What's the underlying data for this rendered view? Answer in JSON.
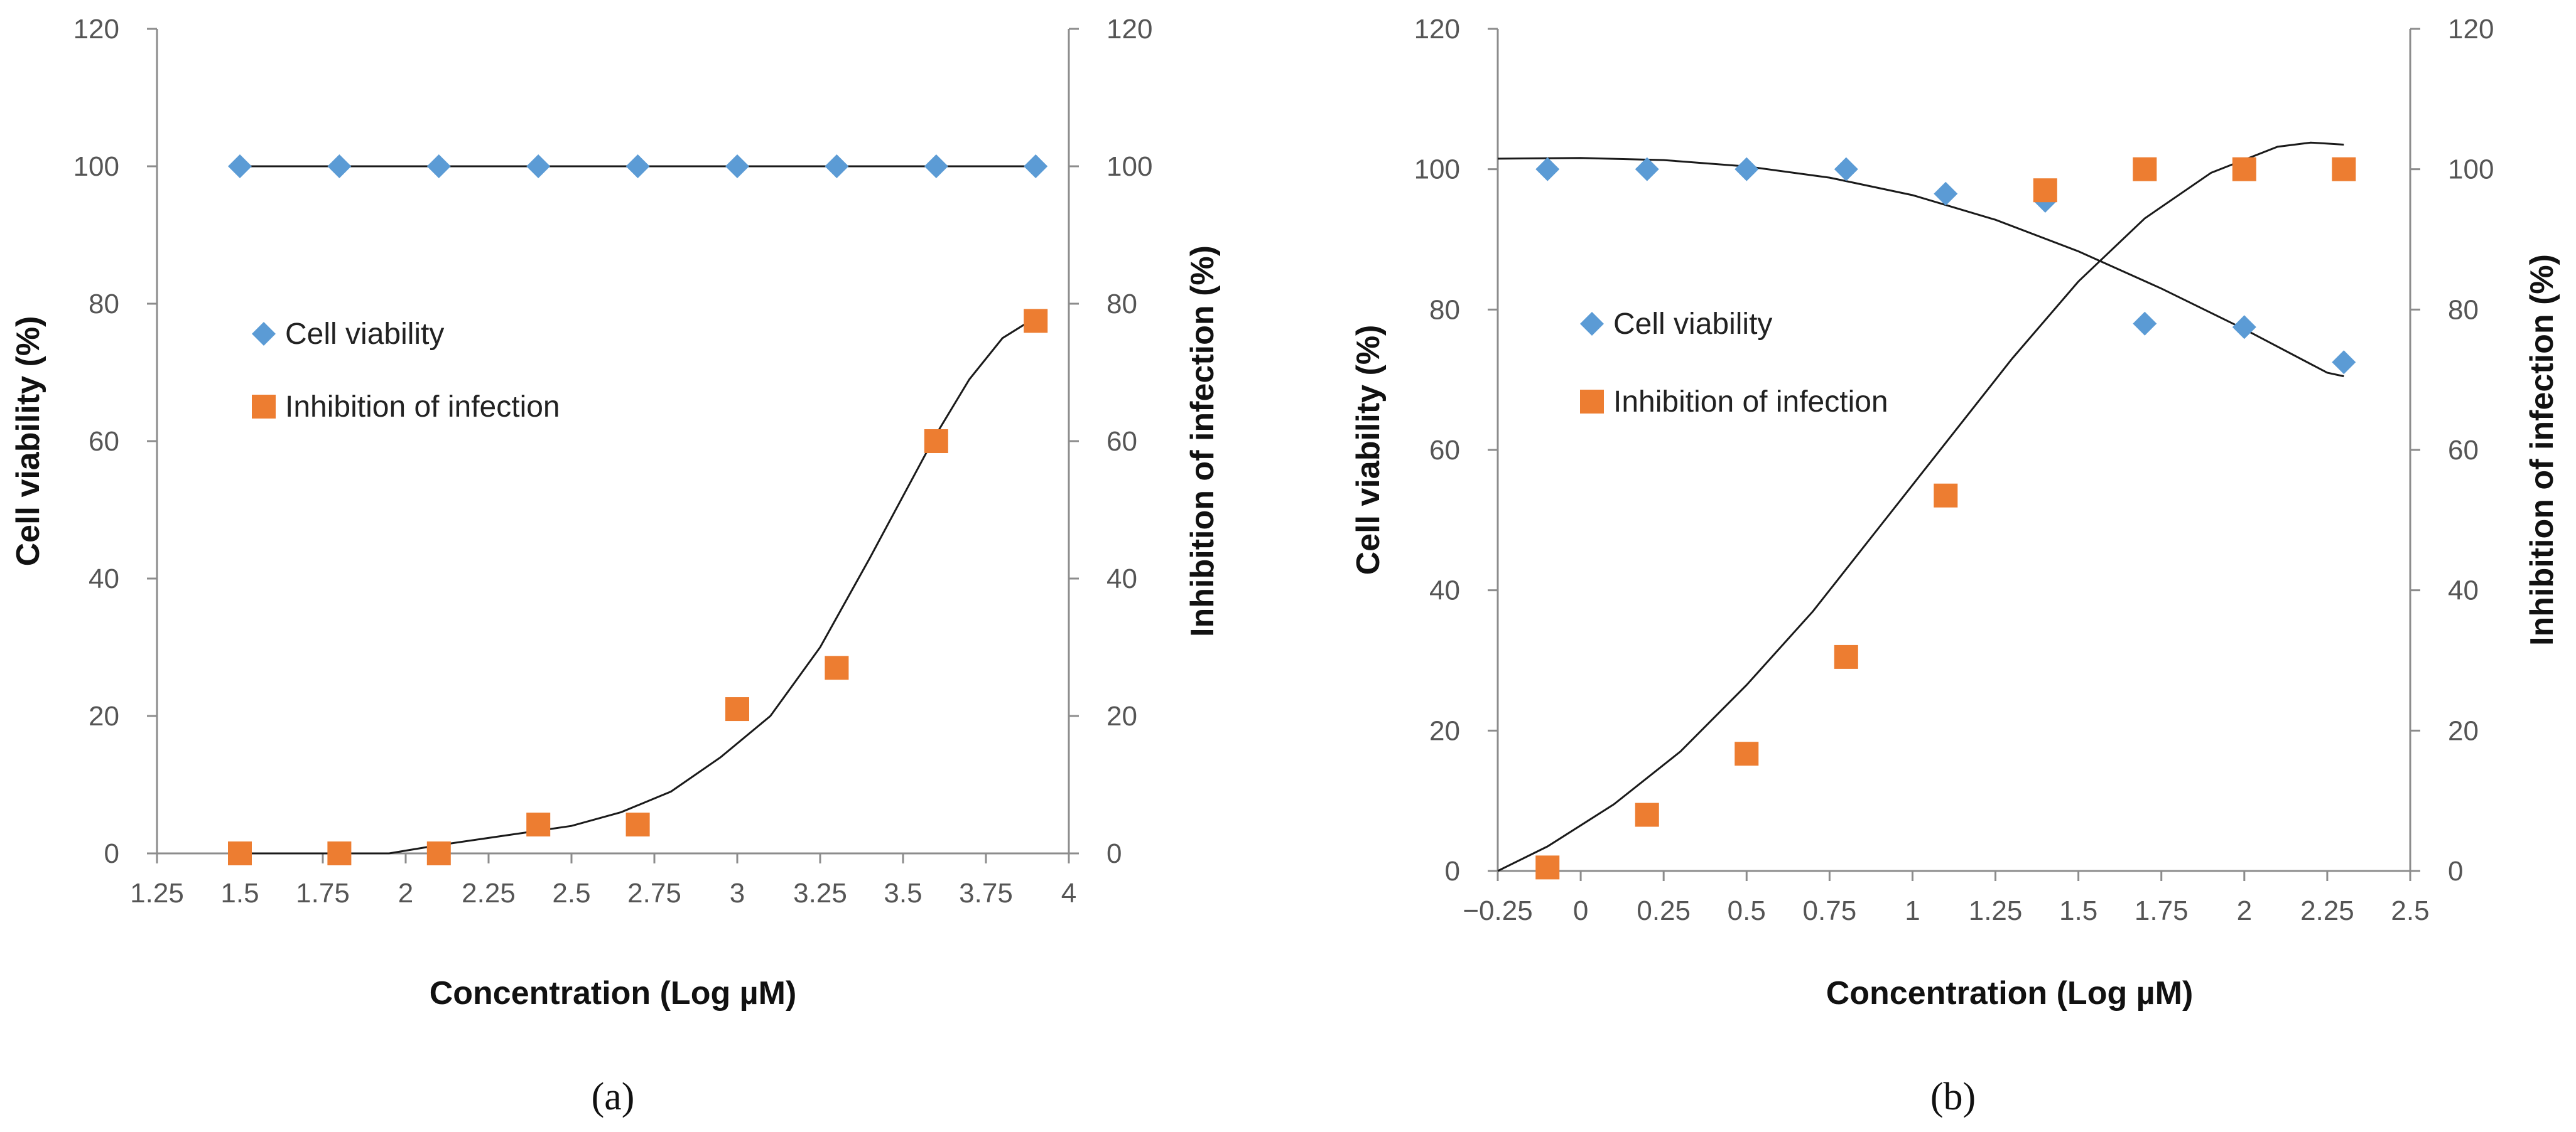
{
  "chart_data": [
    {
      "type": "scatter",
      "panel_label": "(a)",
      "xlabel": "Concentration (Log µM)",
      "ylabel_left": "Cell viability (%)",
      "ylabel_right": "Inhibition of infection (%)",
      "xlim": [
        1.25,
        4
      ],
      "ylim": [
        0,
        120
      ],
      "x_ticks": [
        "1.25",
        "1.5",
        "1.75",
        "2",
        "2.25",
        "2.5",
        "2.75",
        "3",
        "3.25",
        "3.5",
        "3.75",
        "4"
      ],
      "y_ticks": [
        "0",
        "20",
        "40",
        "60",
        "80",
        "100",
        "120"
      ],
      "legend_position": "center-left",
      "series": [
        {
          "name": "Cell viability",
          "marker": "diamond",
          "color": "#5b9bd5",
          "x": [
            1.5,
            1.8,
            2.1,
            2.4,
            2.7,
            3.0,
            3.3,
            3.6,
            3.9
          ],
          "y": [
            100,
            100,
            100,
            100,
            100,
            100,
            100,
            100,
            100
          ],
          "fit": [
            [
              1.5,
              100
            ],
            [
              3.9,
              100
            ]
          ]
        },
        {
          "name": "Inhibition of infection",
          "marker": "square",
          "color": "#ed7d31",
          "x": [
            1.5,
            1.8,
            2.1,
            2.4,
            2.7,
            3.0,
            3.3,
            3.6,
            3.9
          ],
          "y": [
            0,
            0,
            0,
            4.2,
            4.2,
            21,
            27,
            60,
            77.5
          ],
          "fit": [
            [
              1.5,
              0
            ],
            [
              1.75,
              0
            ],
            [
              1.95,
              0
            ],
            [
              2.1,
              1.2
            ],
            [
              2.3,
              2.6
            ],
            [
              2.5,
              4.0
            ],
            [
              2.65,
              6.0
            ],
            [
              2.8,
              9.0
            ],
            [
              2.95,
              14
            ],
            [
              3.1,
              20
            ],
            [
              3.25,
              30
            ],
            [
              3.4,
              43
            ],
            [
              3.5,
              52
            ],
            [
              3.6,
              61
            ],
            [
              3.7,
              69
            ],
            [
              3.8,
              75
            ],
            [
              3.9,
              78
            ]
          ]
        }
      ]
    },
    {
      "type": "scatter",
      "panel_label": "(b)",
      "xlabel": "Concentration (Log µM)",
      "ylabel_left": "Cell viability (%)",
      "ylabel_right": "Inhibition of infection (%)",
      "xlim": [
        -0.25,
        2.5
      ],
      "ylim": [
        0,
        120
      ],
      "x_ticks": [
        "−0.25",
        "0",
        "0.25",
        "0.5",
        "0.75",
        "1",
        "1.25",
        "1.5",
        "1.75",
        "2",
        "2.25",
        "2.5"
      ],
      "y_ticks": [
        "0",
        "20",
        "40",
        "60",
        "80",
        "100",
        "120"
      ],
      "legend_position": "center-left",
      "series": [
        {
          "name": "Cell viability",
          "marker": "diamond",
          "color": "#5b9bd5",
          "x": [
            -0.1,
            0.2,
            0.5,
            0.8,
            1.1,
            1.4,
            1.7,
            2.0,
            2.3
          ],
          "y": [
            100,
            100,
            100,
            100,
            96.5,
            95.5,
            78,
            77.5,
            72.5
          ],
          "fit": [
            [
              -0.25,
              101.5
            ],
            [
              0.0,
              101.6
            ],
            [
              0.25,
              101.3
            ],
            [
              0.5,
              100.4
            ],
            [
              0.75,
              98.8
            ],
            [
              1.0,
              96.3
            ],
            [
              1.25,
              92.8
            ],
            [
              1.5,
              88.3
            ],
            [
              1.75,
              83.0
            ],
            [
              2.0,
              77.2
            ],
            [
              2.25,
              71.0
            ],
            [
              2.3,
              70.5
            ]
          ]
        },
        {
          "name": "Inhibition of infection",
          "marker": "square",
          "color": "#ed7d31",
          "x": [
            -0.1,
            0.2,
            0.5,
            0.8,
            1.1,
            1.4,
            1.7,
            2.0,
            2.3
          ],
          "y": [
            0.5,
            8,
            16.7,
            30.5,
            53.5,
            97,
            100,
            100,
            100
          ],
          "fit": [
            [
              -0.25,
              0
            ],
            [
              -0.1,
              3.5
            ],
            [
              0.1,
              9.5
            ],
            [
              0.3,
              17
            ],
            [
              0.5,
              26.5
            ],
            [
              0.7,
              37
            ],
            [
              0.9,
              49
            ],
            [
              1.1,
              61
            ],
            [
              1.3,
              73
            ],
            [
              1.5,
              84
            ],
            [
              1.7,
              93
            ],
            [
              1.9,
              99.5
            ],
            [
              2.1,
              103.2
            ],
            [
              2.2,
              103.8
            ],
            [
              2.3,
              103.5
            ]
          ]
        }
      ]
    }
  ]
}
